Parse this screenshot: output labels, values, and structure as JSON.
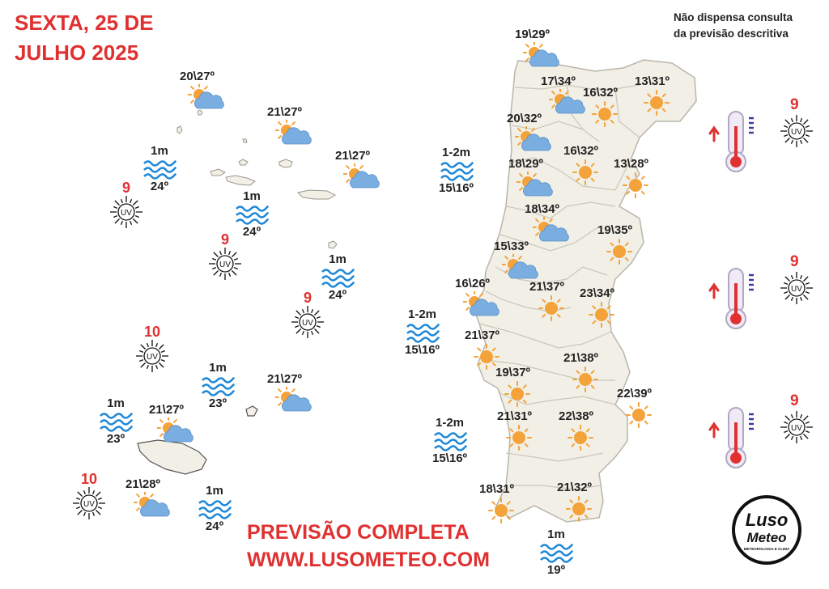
{
  "header": {
    "date_line1": "SEXTA, 25 DE",
    "date_line2": "JULHO 2025",
    "disclaimer_line1": "Não dispensa consulta",
    "disclaimer_line2": "da previsão descritiva"
  },
  "footer": {
    "cta_line1": "PREVISÃO COMPLETA",
    "cta_line2": "WWW.LUSOMETEO.COM"
  },
  "logo": {
    "line1": "Luso",
    "line2": "Meteo",
    "tagline": "METEOROLOGIA E CLIMA"
  },
  "uv_label": "UV",
  "colors": {
    "accent": "#e03030",
    "sun": "#f4a23a",
    "cloud": "#7aaee0",
    "wave": "#1e88d8",
    "land": "#f2f0e6",
    "border": "#c9c6bb"
  },
  "icons": {
    "sun": "sun-icon",
    "partly_cloudy": "sun-behind-cloud-icon",
    "waves": "waves-icon",
    "uv": "uv-sun-icon",
    "thermometer": "thermometer-icon",
    "arrow": "arrow-up-icon"
  },
  "azores_forecasts": [
    {
      "temp": "20\\27º",
      "icon": "partly_cloudy"
    },
    {
      "temp": "21\\27º",
      "icon": "partly_cloudy"
    },
    {
      "temp": "21\\27º",
      "icon": "partly_cloudy"
    }
  ],
  "azores_sea": [
    {
      "wave": "1m",
      "water": "24º"
    },
    {
      "wave": "1m",
      "water": "24º"
    },
    {
      "wave": "1m",
      "water": "24º"
    }
  ],
  "azores_uv": [
    "9",
    "9",
    "9"
  ],
  "madeira_forecasts": [
    {
      "temp": "21\\27º",
      "icon": "partly_cloudy"
    },
    {
      "temp": "21\\27º",
      "icon": "partly_cloudy"
    },
    {
      "temp": "21\\28º",
      "icon": "partly_cloudy"
    }
  ],
  "madeira_sea": [
    {
      "wave": "1m",
      "water": "23º"
    },
    {
      "wave": "1m",
      "water": "23º"
    },
    {
      "wave": "1m",
      "water": "24º"
    }
  ],
  "madeira_uv": [
    "10",
    "10"
  ],
  "mainland_forecasts": [
    {
      "temp": "19\\29º",
      "icon": "partly_cloudy"
    },
    {
      "temp": "17\\34º",
      "icon": "partly_cloudy"
    },
    {
      "temp": "16\\32º",
      "icon": "sun"
    },
    {
      "temp": "13\\31º",
      "icon": "sun"
    },
    {
      "temp": "20\\32º",
      "icon": "partly_cloudy"
    },
    {
      "temp": "16\\32º",
      "icon": "sun"
    },
    {
      "temp": "18\\29º",
      "icon": "partly_cloudy"
    },
    {
      "temp": "13\\28º",
      "icon": "sun"
    },
    {
      "temp": "18\\34º",
      "icon": "partly_cloudy"
    },
    {
      "temp": "19\\35º",
      "icon": "sun"
    },
    {
      "temp": "15\\33º",
      "icon": "partly_cloudy"
    },
    {
      "temp": "16\\26º",
      "icon": "partly_cloudy"
    },
    {
      "temp": "21\\37º",
      "icon": "sun"
    },
    {
      "temp": "23\\34º",
      "icon": "sun"
    },
    {
      "temp": "21\\37º",
      "icon": "sun"
    },
    {
      "temp": "21\\38º",
      "icon": "sun"
    },
    {
      "temp": "19\\37º",
      "icon": "sun"
    },
    {
      "temp": "22\\39º",
      "icon": "sun"
    },
    {
      "temp": "21\\31º",
      "icon": "sun"
    },
    {
      "temp": "22\\38º",
      "icon": "sun"
    },
    {
      "temp": "18\\31º",
      "icon": "sun"
    },
    {
      "temp": "21\\32º",
      "icon": "sun"
    }
  ],
  "mainland_sea": [
    {
      "wave": "1-2m",
      "water": "15\\16º"
    },
    {
      "wave": "1-2m",
      "water": "15\\16º"
    },
    {
      "wave": "1-2m",
      "water": "15\\16º"
    },
    {
      "wave": "1m",
      "water": "19º"
    }
  ],
  "risk_panel": [
    {
      "uv": "9",
      "trend": "up"
    },
    {
      "uv": "9",
      "trend": "up"
    },
    {
      "uv": "9",
      "trend": "up"
    }
  ]
}
